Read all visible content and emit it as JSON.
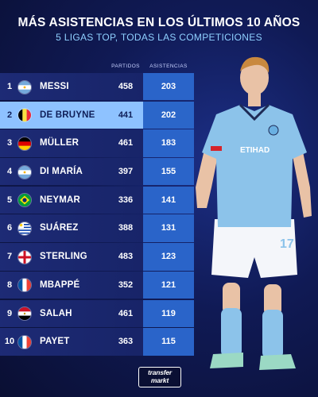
{
  "title": "MÁS ASISTENCIAS EN LOS ÚLTIMOS 10 AÑOS",
  "subtitle": "5 LIGAS TOP, TODAS LAS COMPETICIONES",
  "columns": {
    "matches": "PARTIDOS",
    "assists": "ASISTENCIAS"
  },
  "rows": [
    {
      "rank": "1",
      "name": "MESSI",
      "matches": "458",
      "assists": "203",
      "flag": "argentina-flag-icon"
    },
    {
      "rank": "2",
      "name": "DE BRUYNE",
      "matches": "441",
      "assists": "202",
      "flag": "belgium-flag-icon",
      "highlight": true
    },
    {
      "rank": "3",
      "name": "MÜLLER",
      "matches": "461",
      "assists": "183",
      "flag": "germany-flag-icon"
    },
    {
      "rank": "4",
      "name": "DI MARÍA",
      "matches": "397",
      "assists": "155",
      "flag": "argentina-flag-icon"
    },
    {
      "rank": "5",
      "name": "NEYMAR",
      "matches": "336",
      "assists": "141",
      "flag": "brazil-flag-icon"
    },
    {
      "rank": "6",
      "name": "SUÁREZ",
      "matches": "388",
      "assists": "131",
      "flag": "uruguay-flag-icon"
    },
    {
      "rank": "7",
      "name": "STERLING",
      "matches": "483",
      "assists": "123",
      "flag": "england-flag-icon"
    },
    {
      "rank": "8",
      "name": "MBAPPÉ",
      "matches": "352",
      "assists": "121",
      "flag": "france-flag-icon"
    },
    {
      "rank": "9",
      "name": "SALAH",
      "matches": "461",
      "assists": "119",
      "flag": "egypt-flag-icon"
    },
    {
      "rank": "10",
      "name": "PAYET",
      "matches": "363",
      "assists": "115",
      "flag": "france-flag-icon"
    }
  ],
  "logo": {
    "line1": "transfer",
    "line2": "markt"
  },
  "colors": {
    "highlight": "#8ec2ff",
    "assists_cell": "#2a64c9",
    "subtitle": "#8fd0ff",
    "kit": "#8cc3ea"
  }
}
